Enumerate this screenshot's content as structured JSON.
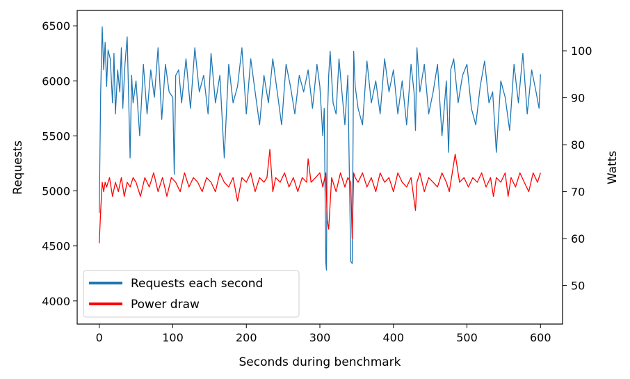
{
  "chart_data": {
    "type": "line",
    "title": "",
    "xlabel": "Seconds during benchmark",
    "ylabel_left": "Requests",
    "ylabel_right": "Watts",
    "xlim": [
      -30,
      630
    ],
    "ylim_left": [
      3790,
      6640
    ],
    "ylim_right": [
      41.8,
      108.6
    ],
    "x_ticks": [
      0,
      100,
      200,
      300,
      400,
      500,
      600
    ],
    "y_ticks_left": [
      4000,
      4500,
      5000,
      5500,
      6000,
      6500
    ],
    "y_ticks_right": [
      50,
      60,
      70,
      80,
      90,
      100
    ],
    "grid": false,
    "legend_position": "lower-left",
    "series": [
      {
        "name": "Requests each second",
        "axis": "left",
        "color": "#1f77b4",
        "x": [
          0,
          2,
          4,
          6,
          8,
          10,
          12,
          15,
          18,
          20,
          22,
          25,
          28,
          30,
          32,
          35,
          38,
          40,
          42,
          44,
          46,
          50,
          55,
          60,
          65,
          70,
          75,
          80,
          85,
          90,
          95,
          100,
          102,
          104,
          108,
          112,
          118,
          124,
          130,
          136,
          142,
          148,
          152,
          158,
          164,
          170,
          176,
          182,
          188,
          194,
          200,
          206,
          212,
          218,
          224,
          230,
          236,
          242,
          248,
          254,
          260,
          266,
          272,
          278,
          284,
          290,
          296,
          300,
          304,
          306,
          308,
          309,
          310,
          312,
          314,
          318,
          322,
          326,
          330,
          334,
          338,
          342,
          344,
          346,
          348,
          352,
          358,
          364,
          370,
          376,
          382,
          388,
          394,
          400,
          406,
          412,
          418,
          424,
          428,
          430,
          432,
          436,
          442,
          448,
          454,
          460,
          466,
          472,
          475,
          478,
          482,
          488,
          494,
          500,
          506,
          512,
          518,
          524,
          530,
          535,
          540,
          546,
          552,
          558,
          564,
          570,
          576,
          582,
          588,
          594,
          598,
          600
        ],
        "values": [
          4800,
          5900,
          6490,
          6100,
          6350,
          5950,
          6280,
          6200,
          5800,
          6250,
          5700,
          6100,
          5900,
          6300,
          5750,
          6150,
          6400,
          5850,
          5300,
          6050,
          5800,
          6000,
          5500,
          6150,
          5700,
          6100,
          5850,
          6300,
          5650,
          6150,
          5900,
          5850,
          5150,
          6050,
          6100,
          5800,
          6200,
          5750,
          6300,
          5900,
          6050,
          5700,
          6250,
          5800,
          6050,
          5300,
          6150,
          5800,
          5950,
          6300,
          5700,
          6200,
          5900,
          5600,
          6050,
          5800,
          6200,
          5900,
          5600,
          6150,
          5950,
          5700,
          6050,
          5900,
          6100,
          5750,
          6150,
          5950,
          5500,
          5750,
          4350,
          4280,
          5600,
          6050,
          6270,
          5800,
          5700,
          6200,
          5900,
          5600,
          6050,
          4360,
          4340,
          6270,
          5950,
          5750,
          5600,
          6180,
          5800,
          6000,
          5700,
          6200,
          5900,
          6100,
          5700,
          6000,
          5600,
          6150,
          5900,
          5550,
          6300,
          5900,
          6150,
          5700,
          5900,
          6150,
          5500,
          6000,
          5350,
          6100,
          6200,
          5800,
          6050,
          6150,
          5750,
          5600,
          5950,
          6180,
          5800,
          5900,
          5350,
          6000,
          5850,
          5550,
          6150,
          5800,
          6250,
          5700,
          6100,
          5900,
          5750,
          6060
        ]
      },
      {
        "name": "Power draw",
        "axis": "right",
        "color": "#ff0000",
        "x": [
          0,
          2,
          4,
          6,
          8,
          10,
          14,
          18,
          22,
          26,
          30,
          34,
          38,
          42,
          46,
          50,
          56,
          62,
          68,
          74,
          80,
          86,
          92,
          98,
          104,
          110,
          116,
          122,
          128,
          134,
          140,
          146,
          152,
          158,
          164,
          170,
          176,
          182,
          188,
          194,
          200,
          206,
          212,
          218,
          224,
          228,
          232,
          236,
          240,
          246,
          252,
          258,
          264,
          270,
          276,
          282,
          284,
          288,
          294,
          300,
          304,
          308,
          310,
          312,
          316,
          322,
          328,
          334,
          338,
          342,
          344,
          346,
          348,
          352,
          358,
          364,
          370,
          376,
          382,
          388,
          394,
          400,
          406,
          412,
          418,
          424,
          430,
          432,
          436,
          442,
          448,
          454,
          460,
          466,
          472,
          476,
          480,
          484,
          490,
          496,
          502,
          508,
          514,
          520,
          526,
          532,
          536,
          540,
          546,
          552,
          556,
          560,
          566,
          572,
          578,
          584,
          590,
          596,
          600
        ],
        "values": [
          59,
          66,
          72,
          70,
          72,
          71,
          73,
          69,
          72,
          70,
          73,
          69,
          72,
          71,
          73,
          72,
          69,
          73,
          71,
          74,
          70,
          73,
          69,
          73,
          72,
          70,
          74,
          71,
          73,
          72,
          70,
          73,
          72,
          70,
          74,
          72,
          71,
          73,
          68,
          73,
          72,
          74,
          70,
          73,
          72,
          73,
          79,
          70,
          73,
          72,
          74,
          71,
          73,
          70,
          73,
          72,
          77,
          72,
          73,
          74,
          71,
          74,
          64,
          62,
          73,
          70,
          74,
          71,
          73,
          72,
          60,
          74,
          73,
          72,
          74,
          71,
          73,
          70,
          74,
          72,
          73,
          70,
          74,
          72,
          71,
          73,
          66,
          72,
          74,
          70,
          73,
          72,
          71,
          74,
          72,
          70,
          74,
          78,
          72,
          73,
          71,
          73,
          72,
          74,
          71,
          73,
          69,
          73,
          72,
          74,
          69,
          73,
          71,
          74,
          72,
          70,
          74,
          72,
          74
        ]
      }
    ]
  }
}
